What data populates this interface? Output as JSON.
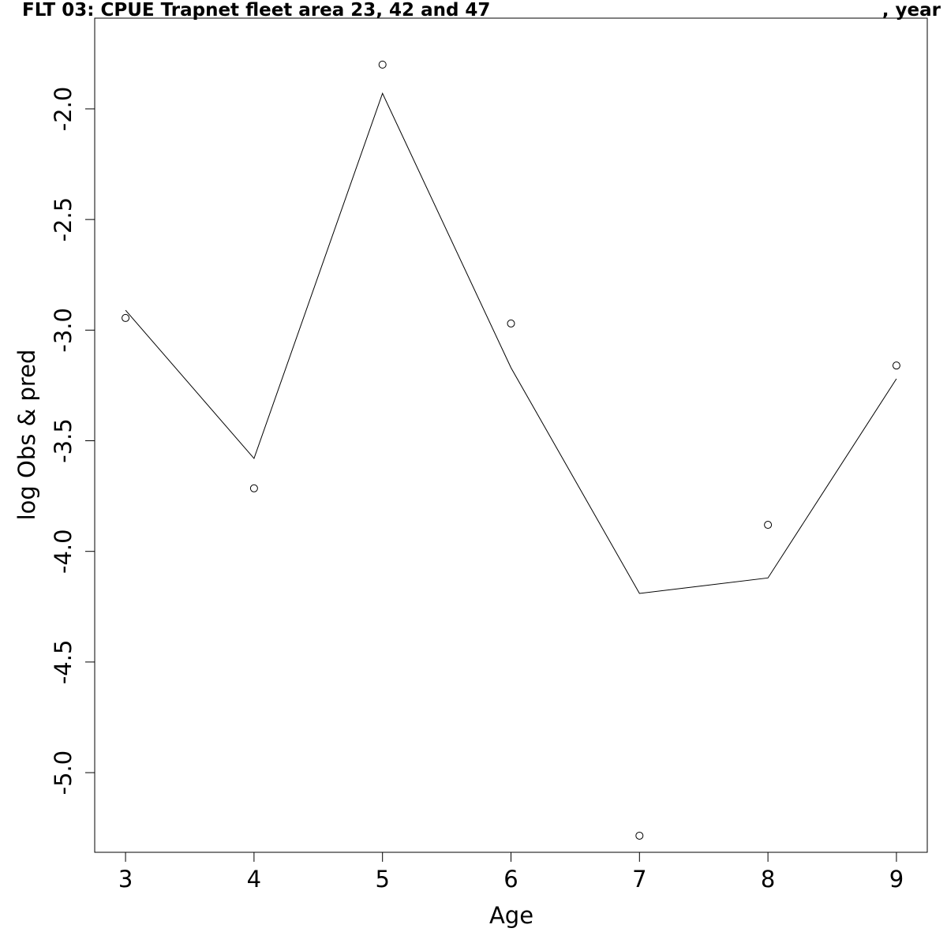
{
  "chart_data": {
    "type": "line",
    "title": "FLT 03: CPUE Trapnet fleet area 23, 42 and 47",
    "title_suffix": ", year",
    "xlabel": "Age",
    "ylabel": "log Obs & pred",
    "x": [
      3,
      4,
      5,
      6,
      7,
      8,
      9
    ],
    "xticks": [
      "3",
      "4",
      "5",
      "6",
      "7",
      "8",
      "9"
    ],
    "yticks": [
      "-2.0",
      "-2.5",
      "-3.0",
      "-3.5",
      "-4.0",
      "-4.5",
      "-5.0"
    ],
    "xlim": [
      2.76,
      9.24
    ],
    "ylim": [
      -5.36,
      -1.59
    ],
    "grid": false,
    "series": [
      {
        "style": "points",
        "values": [
          -2.945,
          -3.715,
          -1.8,
          -2.97,
          -5.285,
          -3.88,
          -3.16
        ]
      },
      {
        "style": "line",
        "values": [
          -2.91,
          -3.58,
          -1.93,
          -3.17,
          -4.19,
          -4.12,
          -3.22
        ]
      }
    ]
  }
}
